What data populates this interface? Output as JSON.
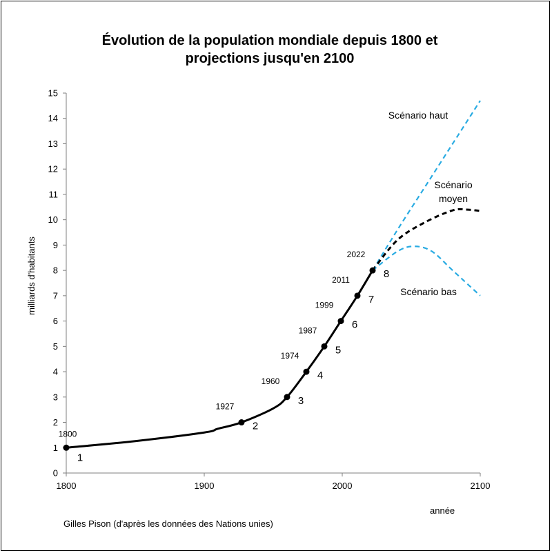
{
  "title_line1": "Évolution de la population mondiale depuis 1800 et",
  "title_line2": "projections jusqu'en 2100",
  "source": "Gilles Pison (d'après les données des Nations unies)",
  "chart_data": {
    "type": "line",
    "title": "Évolution de la population mondiale depuis 1800 et projections jusqu'en 2100",
    "xlabel": "année",
    "ylabel": "milliards d'habitants",
    "xlim": [
      1800,
      2100
    ],
    "ylim": [
      0,
      15
    ],
    "x_ticks": [
      1800,
      1900,
      2000,
      2100
    ],
    "y_ticks": [
      0,
      1,
      2,
      3,
      4,
      5,
      6,
      7,
      8,
      9,
      10,
      11,
      12,
      13,
      14,
      15
    ],
    "grid": false,
    "colors": {
      "historical": "#000000",
      "medium": "#000000",
      "high": "#29abe2",
      "low": "#29abe2"
    },
    "historical": {
      "x": [
        1800,
        1850,
        1900,
        1910,
        1927,
        1950,
        1960,
        1974,
        1987,
        1999,
        2011,
        2022
      ],
      "y": [
        1,
        1.26,
        1.6,
        1.75,
        2,
        2.55,
        3,
        4,
        5,
        6,
        7,
        8
      ]
    },
    "milestones": [
      {
        "year": "1800",
        "mark": "1",
        "x": 1800,
        "y": 1
      },
      {
        "year": "1927",
        "mark": "2",
        "x": 1927,
        "y": 2
      },
      {
        "year": "1960",
        "mark": "3",
        "x": 1960,
        "y": 3
      },
      {
        "year": "1974",
        "mark": "4",
        "x": 1974,
        "y": 4
      },
      {
        "year": "1987",
        "mark": "5",
        "x": 1987,
        "y": 5
      },
      {
        "year": "1999",
        "mark": "6",
        "x": 1999,
        "y": 6
      },
      {
        "year": "2011",
        "mark": "7",
        "x": 2011,
        "y": 7
      },
      {
        "year": "2022",
        "mark": "8",
        "x": 2022,
        "y": 8
      }
    ],
    "series": [
      {
        "name": "Scénario haut",
        "x": [
          2022,
          2040,
          2060,
          2080,
          2100
        ],
        "y": [
          8,
          9.6,
          11.3,
          13,
          14.7
        ]
      },
      {
        "name": "Scénario moyen",
        "x": [
          2022,
          2040,
          2060,
          2080,
          2090,
          2100
        ],
        "y": [
          8,
          9.2,
          9.9,
          10.37,
          10.4,
          10.35
        ]
      },
      {
        "name": "Scénario bas",
        "x": [
          2022,
          2040,
          2052,
          2065,
          2080,
          2100
        ],
        "y": [
          8,
          8.75,
          8.95,
          8.75,
          8.0,
          7.0
        ]
      }
    ],
    "scenario_labels": [
      {
        "lines": [
          "Scénario haut"
        ]
      },
      {
        "lines": [
          "Scénario",
          "moyen"
        ]
      },
      {
        "lines": [
          "Scénario bas"
        ]
      }
    ]
  }
}
